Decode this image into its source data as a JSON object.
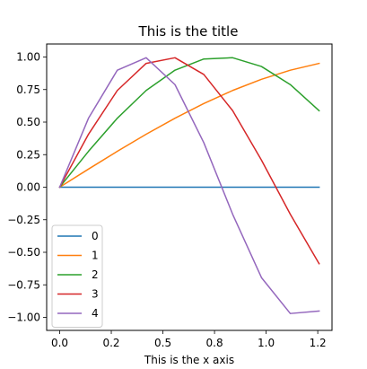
{
  "chart_data": {
    "type": "line",
    "title": "This is the title",
    "xlabel": "This is the x axis",
    "ylabel": "",
    "xlim": [
      -0.063,
      1.319
    ],
    "ylim": [
      -1.1,
      1.1
    ],
    "xticks": [
      0.0,
      0.25,
      0.5,
      0.75,
      1.0,
      1.25
    ],
    "xtick_labels": [
      "0.0",
      "0.2",
      "0.5",
      "0.8",
      "1.0",
      "1.2"
    ],
    "yticks": [
      1.0,
      0.75,
      0.5,
      0.25,
      0.0,
      -0.25,
      -0.5,
      -0.75,
      -1.0
    ],
    "ytick_labels": [
      "1.00",
      "0.75",
      "0.50",
      "0.25",
      "0.00",
      "−0.25",
      "−0.50",
      "−0.75",
      "−1.00"
    ],
    "grid": false,
    "legend_position": "lower-left",
    "x": [
      0.0,
      0.1396,
      0.2793,
      0.4189,
      0.5585,
      0.6981,
      0.8378,
      0.9774,
      1.117,
      1.2566
    ],
    "series": [
      {
        "name": "0",
        "color": "#1f77b4",
        "values": [
          0.0,
          0.0,
          0.0,
          0.0,
          0.0,
          0.0,
          0.0,
          0.0,
          0.0,
          0.0
        ]
      },
      {
        "name": "1",
        "color": "#ff7f0e",
        "values": [
          0.0,
          0.1392,
          0.2756,
          0.4067,
          0.5299,
          0.6428,
          0.7431,
          0.829,
          0.8988,
          0.9511
        ]
      },
      {
        "name": "2",
        "color": "#2ca02c",
        "values": [
          0.0,
          0.2756,
          0.5299,
          0.7431,
          0.8988,
          0.9848,
          0.9945,
          0.9272,
          0.788,
          0.5878
        ]
      },
      {
        "name": "3",
        "color": "#d62728",
        "values": [
          0.0,
          0.4067,
          0.7431,
          0.9511,
          0.9945,
          0.866,
          0.5878,
          0.2079,
          -0.2079,
          -0.5878
        ]
      },
      {
        "name": "4",
        "color": "#9467bd",
        "values": [
          0.0,
          0.5299,
          0.8988,
          0.9945,
          0.788,
          0.342,
          -0.2079,
          -0.6946,
          -0.9703,
          -0.9511
        ]
      }
    ]
  }
}
